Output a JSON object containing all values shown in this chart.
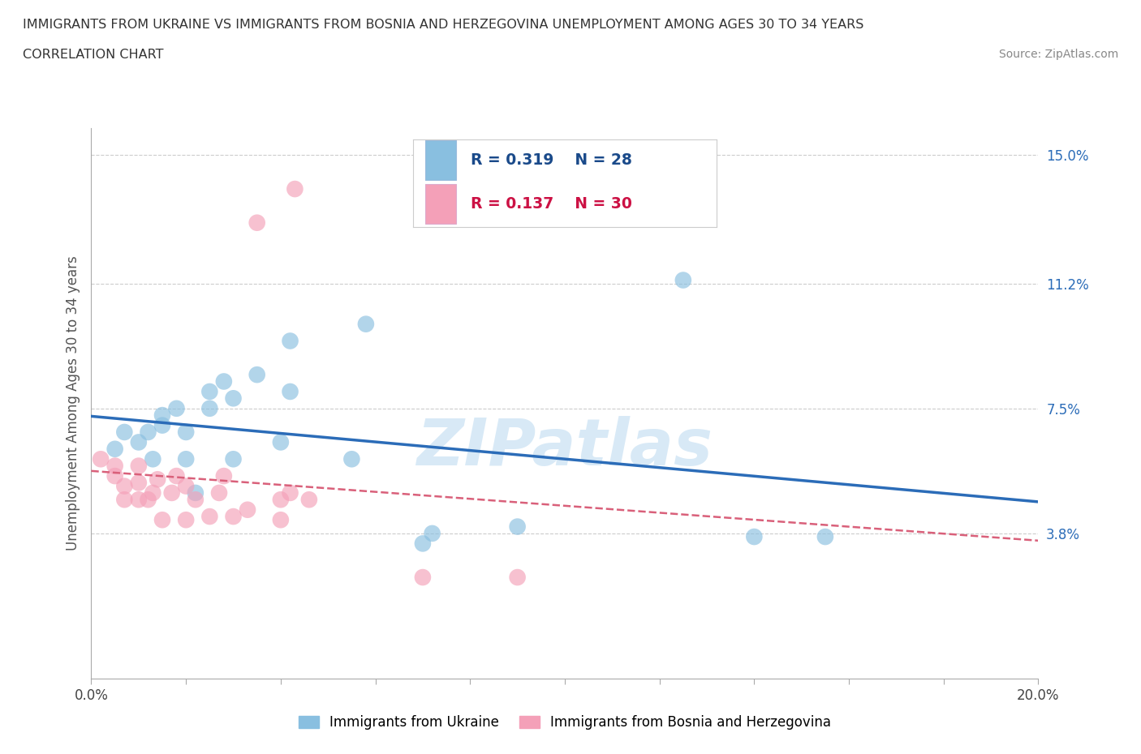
{
  "title_line1": "IMMIGRANTS FROM UKRAINE VS IMMIGRANTS FROM BOSNIA AND HERZEGOVINA UNEMPLOYMENT AMONG AGES 30 TO 34 YEARS",
  "title_line2": "CORRELATION CHART",
  "source": "Source: ZipAtlas.com",
  "ylabel": "Unemployment Among Ages 30 to 34 years",
  "xlim": [
    0.0,
    0.2
  ],
  "ylim": [
    -0.005,
    0.158
  ],
  "xticks": [
    0.0,
    0.02,
    0.04,
    0.06,
    0.08,
    0.1,
    0.12,
    0.14,
    0.16,
    0.18,
    0.2
  ],
  "ytick_positions": [
    0.038,
    0.075,
    0.112,
    0.15
  ],
  "ytick_labels": [
    "3.8%",
    "7.5%",
    "11.2%",
    "15.0%"
  ],
  "grid_color": "#cccccc",
  "background_color": "#ffffff",
  "ukraine_color": "#89bfe0",
  "bosnia_color": "#f4a0b8",
  "ukraine_R": 0.319,
  "ukraine_N": 28,
  "bosnia_R": 0.137,
  "bosnia_N": 30,
  "ukraine_line_color": "#2b6cb8",
  "bosnia_line_color": "#d9607a",
  "watermark": "ZIPatlas",
  "ukraine_x": [
    0.005,
    0.007,
    0.01,
    0.012,
    0.013,
    0.015,
    0.015,
    0.018,
    0.02,
    0.02,
    0.022,
    0.025,
    0.025,
    0.028,
    0.03,
    0.03,
    0.035,
    0.04,
    0.042,
    0.042,
    0.055,
    0.058,
    0.07,
    0.072,
    0.09,
    0.125,
    0.14,
    0.155
  ],
  "ukraine_y": [
    0.063,
    0.068,
    0.065,
    0.068,
    0.06,
    0.07,
    0.073,
    0.075,
    0.068,
    0.06,
    0.05,
    0.075,
    0.08,
    0.083,
    0.06,
    0.078,
    0.085,
    0.065,
    0.08,
    0.095,
    0.06,
    0.1,
    0.035,
    0.038,
    0.04,
    0.113,
    0.037,
    0.037
  ],
  "bosnia_x": [
    0.002,
    0.005,
    0.005,
    0.007,
    0.007,
    0.01,
    0.01,
    0.01,
    0.012,
    0.013,
    0.014,
    0.015,
    0.017,
    0.018,
    0.02,
    0.02,
    0.022,
    0.025,
    0.027,
    0.028,
    0.03,
    0.033,
    0.035,
    0.04,
    0.04,
    0.042,
    0.043,
    0.046,
    0.07,
    0.09
  ],
  "bosnia_y": [
    0.06,
    0.055,
    0.058,
    0.048,
    0.052,
    0.048,
    0.053,
    0.058,
    0.048,
    0.05,
    0.054,
    0.042,
    0.05,
    0.055,
    0.042,
    0.052,
    0.048,
    0.043,
    0.05,
    0.055,
    0.043,
    0.045,
    0.13,
    0.042,
    0.048,
    0.05,
    0.14,
    0.048,
    0.025,
    0.025
  ]
}
